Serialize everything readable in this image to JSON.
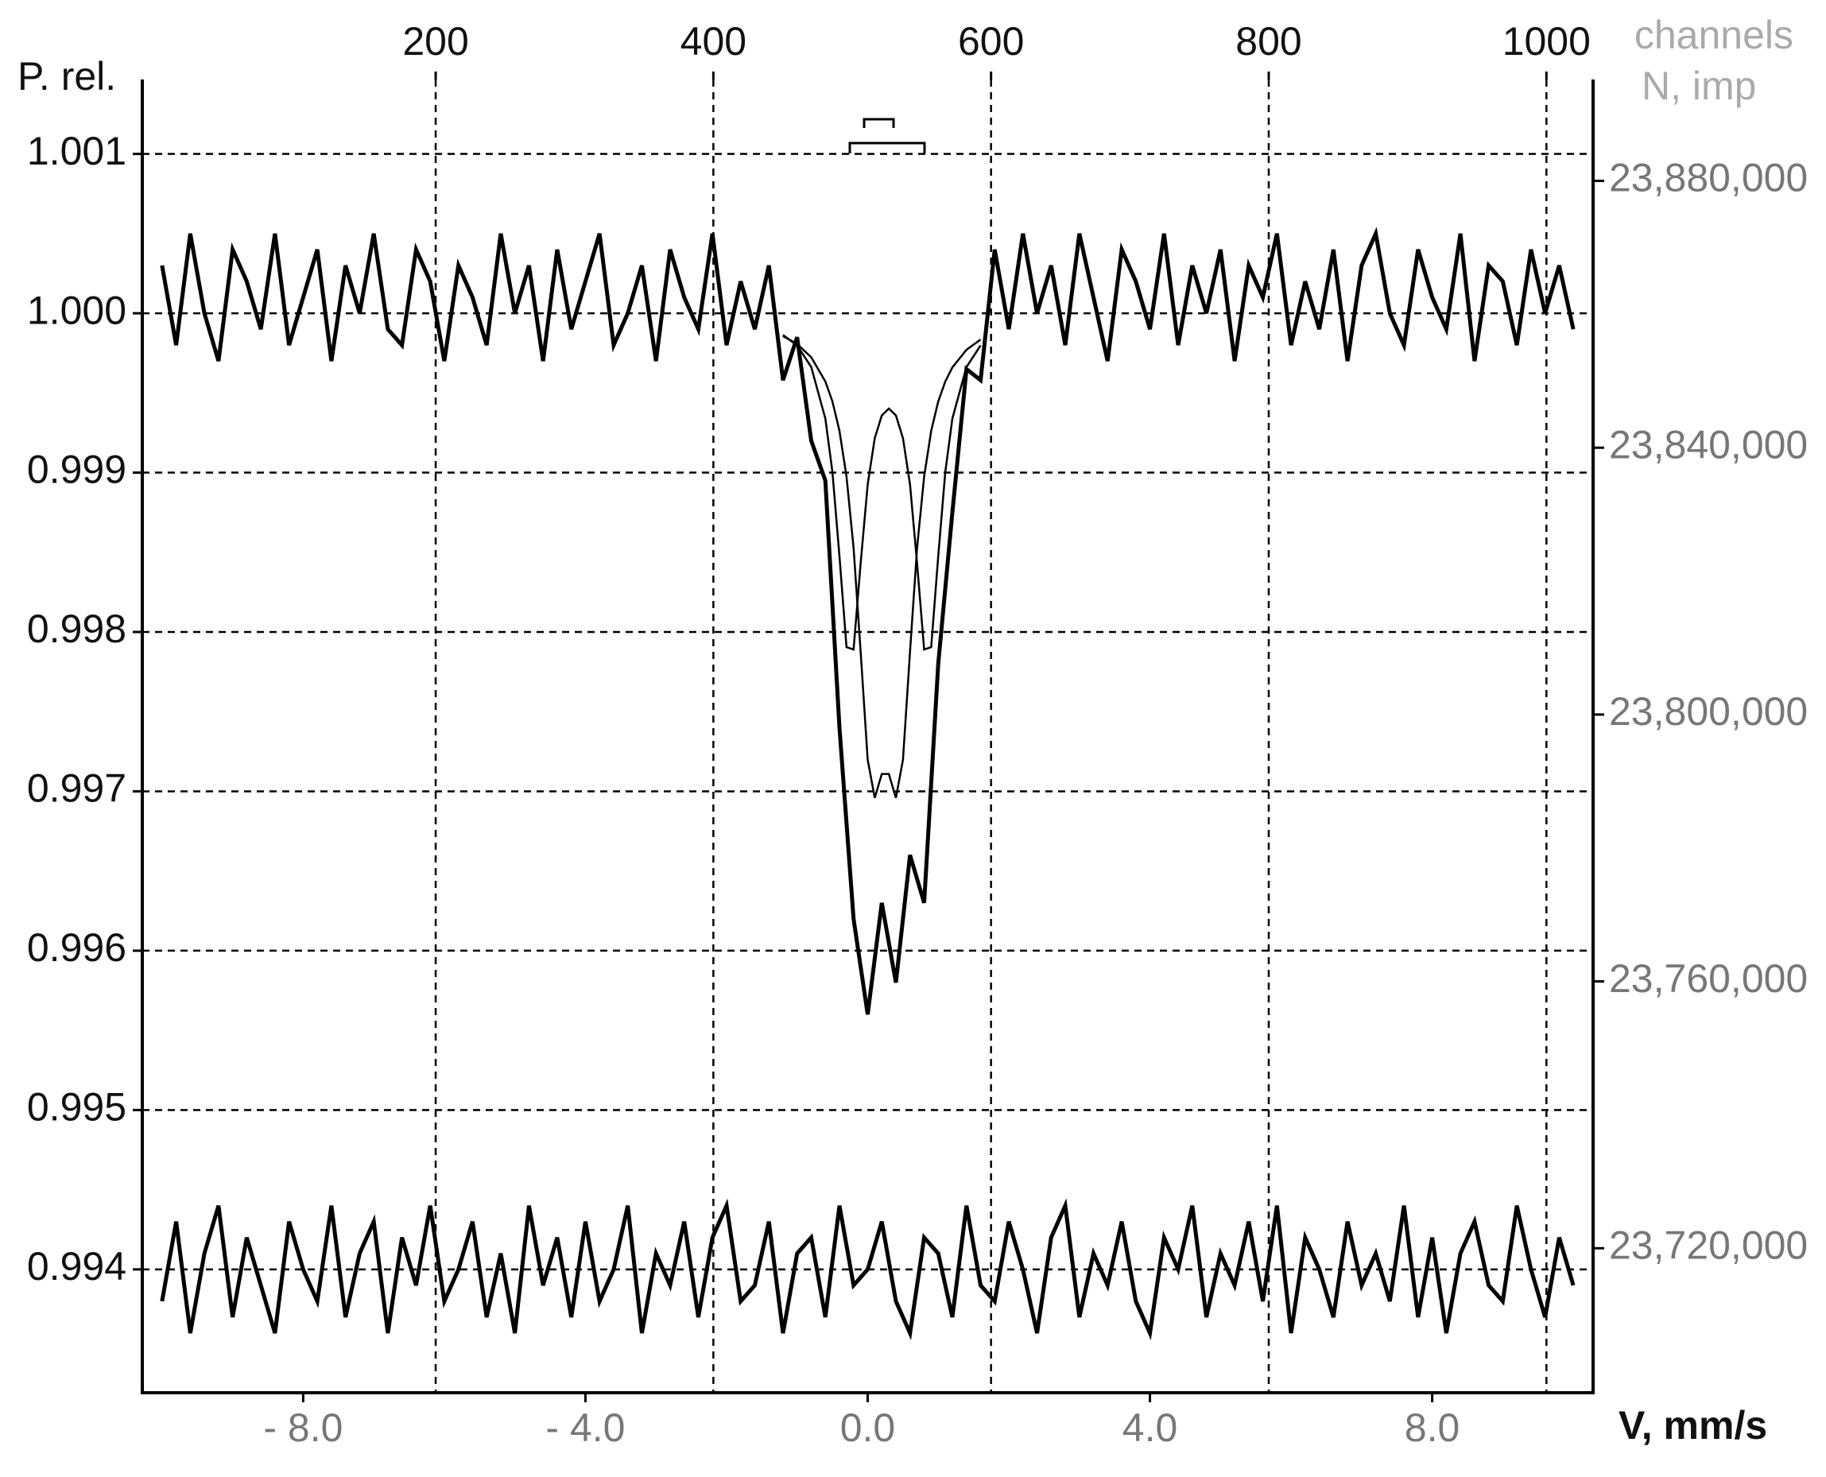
{
  "chart_data": {
    "type": "line",
    "y_label": "P. rel.",
    "x_label": "V, mm/s",
    "x2_label": "channels",
    "y2_label": "N, imp",
    "grid": true,
    "xlim": [
      -10.28,
      10.28
    ],
    "xticks": [
      {
        "value": -8,
        "label": "- 8.0"
      },
      {
        "value": -4,
        "label": "- 4.0"
      },
      {
        "value": 0,
        "label": "0.0"
      },
      {
        "value": 4,
        "label": "4.0"
      },
      {
        "value": 8,
        "label": "8.0"
      }
    ],
    "x2lim": [
      -11.3,
      1033.6
    ],
    "x2ticks": [
      200,
      400,
      600,
      800,
      1000
    ],
    "ylim": [
      0.993226,
      1.001467
    ],
    "yticks": [
      1.001,
      {
        "value": 1,
        "label": "1.000"
      },
      0.999,
      0.998,
      0.997,
      0.996,
      0.995,
      0.994
    ],
    "y2lim": [
      23698340,
      23895197
    ],
    "y2ticks": [
      {
        "value": 23880000,
        "label": "23,880,000"
      },
      {
        "value": 23840000,
        "label": "23,840,000"
      },
      {
        "value": 23800000,
        "label": "23,800,000"
      },
      {
        "value": 23760000,
        "label": "23,760,000"
      },
      {
        "value": 23720000,
        "label": "23,720,000"
      }
    ],
    "series": [
      {
        "color": "#000000",
        "line_width": 5,
        "x": [
          -10.0,
          -9.8,
          -9.6,
          -9.4,
          -9.2,
          -9.0,
          -8.8,
          -8.6,
          -8.4,
          -8.2,
          -8.0,
          -7.8,
          -7.6,
          -7.4,
          -7.2,
          -7.0,
          -6.8,
          -6.6,
          -6.4,
          -6.2,
          -6.0,
          -5.8,
          -5.6,
          -5.4,
          -5.2,
          -5.0,
          -4.8,
          -4.6,
          -4.4,
          -4.2,
          -4.0,
          -3.8,
          -3.6,
          -3.4,
          -3.2,
          -3.0,
          -2.8,
          -2.6,
          -2.4,
          -2.2,
          -2.0,
          -1.8,
          -1.6,
          -1.4,
          -1.2,
          -1.0,
          -0.8,
          -0.6,
          -0.4,
          -0.2,
          0.0,
          0.2,
          0.4,
          0.6,
          0.8,
          1.0,
          1.2,
          1.4,
          1.6,
          1.8,
          2.0,
          2.2,
          2.4,
          2.6,
          2.8,
          3.0,
          3.2,
          3.4,
          3.6,
          3.8,
          4.0,
          4.2,
          4.4,
          4.6,
          4.8,
          5.0,
          5.2,
          5.4,
          5.6,
          5.8,
          6.0,
          6.2,
          6.4,
          6.6,
          6.8,
          7.0,
          7.2,
          7.4,
          7.6,
          7.8,
          8.0,
          8.2,
          8.4,
          8.6,
          8.8,
          9.0,
          9.2,
          9.4,
          9.6,
          9.8,
          10.0
        ],
        "values": [
          1.0003,
          0.9998,
          1.0005,
          1.0,
          0.9997,
          1.0004,
          1.0002,
          0.9999,
          1.0005,
          0.9998,
          1.0001,
          1.0004,
          0.9997,
          1.0003,
          1.0,
          1.0005,
          0.9999,
          0.9998,
          1.0004,
          1.0002,
          0.9997,
          1.0003,
          1.0001,
          0.9998,
          1.0005,
          1.0,
          1.0003,
          0.9997,
          1.0004,
          0.9999,
          1.0002,
          1.0005,
          0.9998,
          1.0,
          1.0003,
          0.9997,
          1.0004,
          1.0001,
          0.9999,
          1.0005,
          0.9998,
          1.0002,
          0.9999,
          1.0003,
          0.99958,
          0.99985,
          0.9992,
          0.99895,
          0.9974,
          0.9962,
          0.9956,
          0.9963,
          0.9958,
          0.9966,
          0.9963,
          0.9978,
          0.99875,
          0.99965,
          0.99958,
          1.0004,
          0.9999,
          1.0005,
          1.0,
          1.0003,
          0.9998,
          1.0005,
          1.0001,
          0.9997,
          1.0004,
          1.0002,
          0.9999,
          1.0005,
          0.9998,
          1.0003,
          1.0,
          1.0004,
          0.9997,
          1.0003,
          1.0001,
          1.0005,
          0.9998,
          1.0002,
          0.9999,
          1.0004,
          0.9997,
          1.0003,
          1.0005,
          1.0,
          0.9998,
          1.0004,
          1.0001,
          0.9999,
          1.0005,
          0.9997,
          1.0003,
          1.0002,
          0.9998,
          1.0004,
          1.0,
          1.0003,
          0.9999
        ]
      },
      {
        "color": "#000000",
        "line_width": 2.5,
        "x": [
          -1.2,
          -1.0,
          -0.8,
          -0.6,
          -0.5,
          -0.4,
          -0.3,
          -0.2,
          -0.1,
          0,
          0.1,
          0.2,
          0.3,
          0.4,
          0.5,
          0.6,
          0.7,
          0.8,
          0.9,
          1.0,
          1.1,
          1.2,
          1.4,
          1.6
        ],
        "values": [
          0.999864,
          0.999798,
          0.999663,
          0.999339,
          0.999005,
          0.998476,
          0.997905,
          0.99789,
          0.99843,
          0.998925,
          0.999216,
          0.999359,
          0.999402,
          0.999359,
          0.999216,
          0.998925,
          0.99843,
          0.99789,
          0.997905,
          0.998476,
          0.999005,
          0.999339,
          0.999663,
          0.999798
        ]
      },
      {
        "color": "#000000",
        "line_width": 2.5,
        "x": [
          -1.2,
          -1.0,
          -0.8,
          -0.6,
          -0.5,
          -0.4,
          -0.3,
          -0.2,
          -0.1,
          0,
          0.1,
          0.2,
          0.3,
          0.4,
          0.5,
          0.6,
          0.7,
          0.8,
          0.9,
          1.0,
          1.1,
          1.2,
          1.4,
          1.6
        ],
        "values": [
          0.999857,
          0.999807,
          0.999724,
          0.999572,
          0.999447,
          0.999262,
          0.998975,
          0.998528,
          0.997878,
          0.997198,
          0.996959,
          0.997109,
          0.997109,
          0.996959,
          0.997198,
          0.997878,
          0.998528,
          0.998975,
          0.999262,
          0.999447,
          0.999572,
          0.99966,
          0.999771,
          0.999835
        ]
      },
      {
        "color": "#000000",
        "line_width": 5,
        "x": [
          -10.0,
          -9.8,
          -9.6,
          -9.4,
          -9.2,
          -9.0,
          -8.8,
          -8.6,
          -8.4,
          -8.2,
          -8.0,
          -7.8,
          -7.6,
          -7.4,
          -7.2,
          -7.0,
          -6.8,
          -6.6,
          -6.4,
          -6.2,
          -6.0,
          -5.8,
          -5.6,
          -5.4,
          -5.2,
          -5.0,
          -4.8,
          -4.6,
          -4.4,
          -4.2,
          -4.0,
          -3.8,
          -3.6,
          -3.4,
          -3.2,
          -3.0,
          -2.8,
          -2.6,
          -2.4,
          -2.2,
          -2.0,
          -1.8,
          -1.6,
          -1.4,
          -1.2,
          -1.0,
          -0.8,
          -0.6,
          -0.4,
          -0.2,
          0.0,
          0.2,
          0.4,
          0.6,
          0.8,
          1.0,
          1.2,
          1.4,
          1.6,
          1.8,
          2.0,
          2.2,
          2.4,
          2.6,
          2.8,
          3.0,
          3.2,
          3.4,
          3.6,
          3.8,
          4.0,
          4.2,
          4.4,
          4.6,
          4.8,
          5.0,
          5.2,
          5.4,
          5.6,
          5.8,
          6.0,
          6.2,
          6.4,
          6.6,
          6.8,
          7.0,
          7.2,
          7.4,
          7.6,
          7.8,
          8.0,
          8.2,
          8.4,
          8.6,
          8.8,
          9.0,
          9.2,
          9.4,
          9.6,
          9.8,
          10.0
        ],
        "values": [
          0.9938,
          0.9943,
          0.9936,
          0.9941,
          0.9944,
          0.9937,
          0.9942,
          0.9939,
          0.9936,
          0.9943,
          0.994,
          0.9938,
          0.9944,
          0.9937,
          0.9941,
          0.9943,
          0.9936,
          0.9942,
          0.9939,
          0.9944,
          0.9938,
          0.994,
          0.9943,
          0.9937,
          0.9941,
          0.9936,
          0.9944,
          0.9939,
          0.9942,
          0.9937,
          0.9943,
          0.9938,
          0.994,
          0.9944,
          0.9936,
          0.9941,
          0.9939,
          0.9943,
          0.9937,
          0.9942,
          0.9944,
          0.9938,
          0.9939,
          0.9943,
          0.9936,
          0.9941,
          0.9942,
          0.9937,
          0.9944,
          0.9939,
          0.994,
          0.9943,
          0.9938,
          0.9936,
          0.9942,
          0.9941,
          0.9937,
          0.9944,
          0.9939,
          0.9938,
          0.9943,
          0.994,
          0.9936,
          0.9942,
          0.9944,
          0.9937,
          0.9941,
          0.9939,
          0.9943,
          0.9938,
          0.9936,
          0.9942,
          0.994,
          0.9944,
          0.9937,
          0.9941,
          0.9939,
          0.9943,
          0.9938,
          0.9944,
          0.9936,
          0.9942,
          0.994,
          0.9937,
          0.9943,
          0.9939,
          0.9941,
          0.9938,
          0.9944,
          0.9937,
          0.9942,
          0.9936,
          0.9941,
          0.9943,
          0.9939,
          0.9938,
          0.9944,
          0.994,
          0.9937,
          0.9942,
          0.9939
        ]
      }
    ]
  }
}
